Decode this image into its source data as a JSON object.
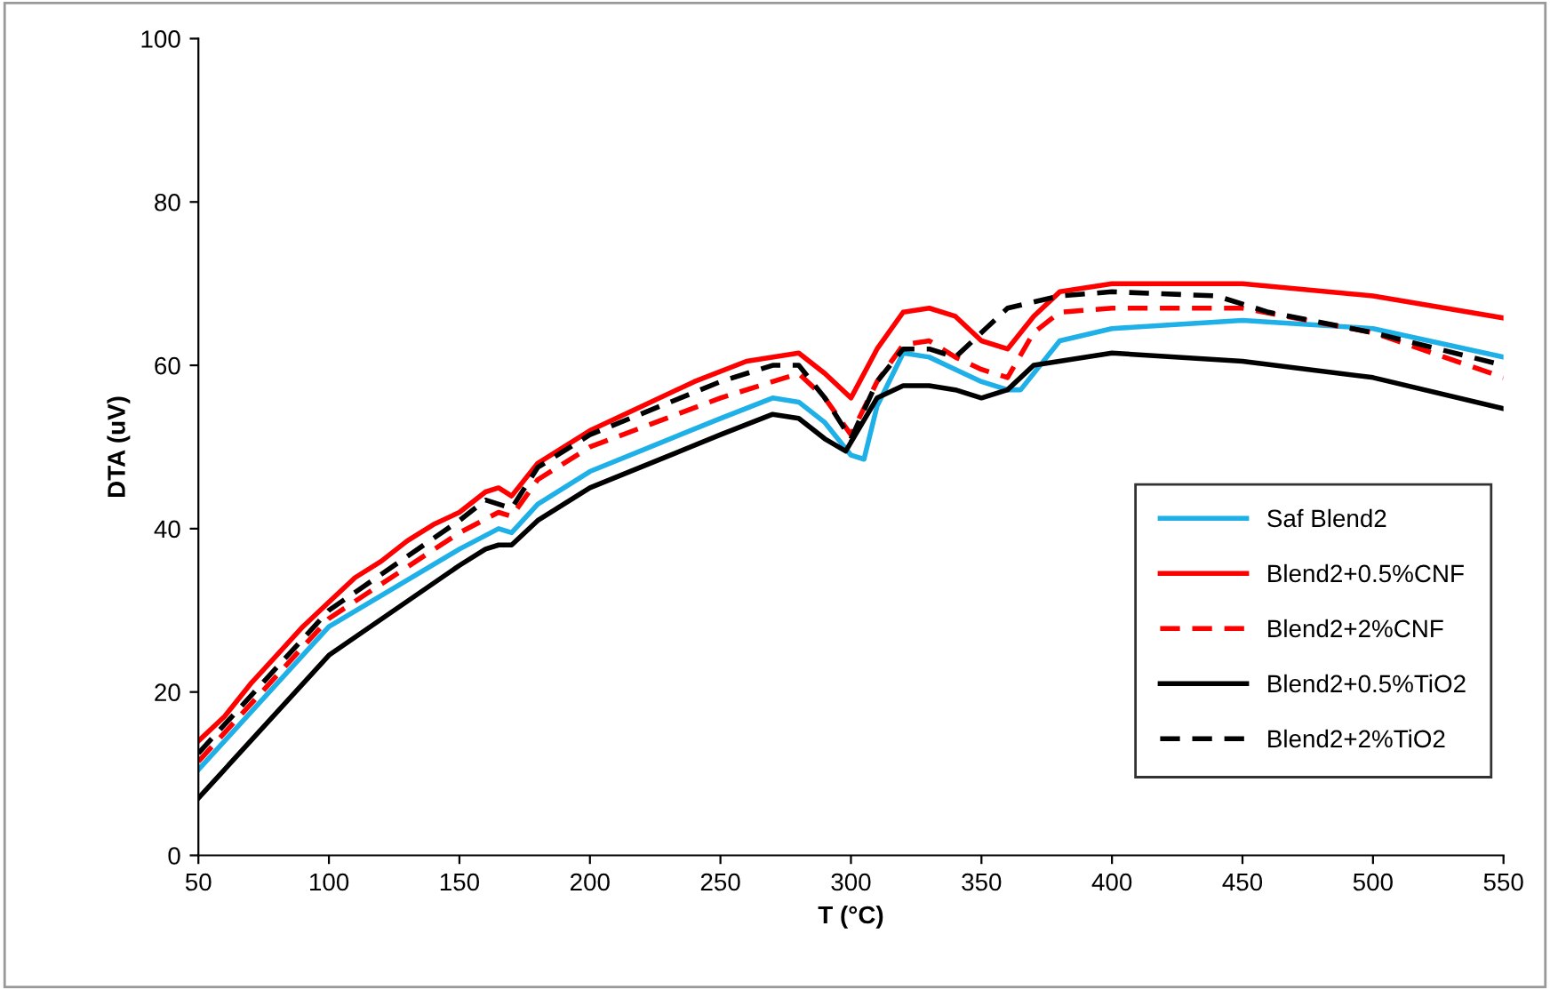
{
  "chart_data": {
    "type": "line",
    "xlabel": "T (°C)",
    "ylabel": "DTA (uV)",
    "xlim": [
      50,
      550
    ],
    "ylim": [
      0,
      100
    ],
    "xticks": [
      50,
      100,
      150,
      200,
      250,
      300,
      350,
      400,
      450,
      500,
      550
    ],
    "yticks": [
      0,
      20,
      40,
      60,
      80,
      100
    ],
    "grid": false,
    "legend": "right",
    "series": [
      {
        "name": "Saf Blend2",
        "color": "#1fb0e8",
        "line_style": "solid",
        "x": [
          50,
          100,
          150,
          165,
          170,
          180,
          200,
          250,
          270,
          280,
          290,
          300,
          305,
          310,
          320,
          330,
          340,
          350,
          360,
          365,
          380,
          400,
          450,
          500,
          550
        ],
        "values": [
          10.5,
          28,
          37.5,
          40,
          39.5,
          43,
          47,
          53.5,
          56,
          55.5,
          53,
          49,
          48.5,
          55,
          61.5,
          61,
          59.5,
          58,
          57,
          57,
          63,
          64.5,
          65.5,
          64.5,
          61
        ]
      },
      {
        "name": "Blend2+0.5%CNF",
        "color": "#ff0000",
        "line_style": "solid",
        "x": [
          50,
          60,
          70,
          80,
          90,
          100,
          110,
          120,
          130,
          140,
          150,
          160,
          165,
          170,
          180,
          200,
          220,
          240,
          260,
          280,
          290,
          300,
          310,
          320,
          330,
          340,
          350,
          360,
          370,
          380,
          400,
          450,
          500,
          550
        ],
        "values": [
          14,
          17,
          21,
          24.5,
          28,
          31,
          34,
          36,
          38.5,
          40.5,
          42,
          44.5,
          45,
          44,
          48,
          52,
          55,
          58,
          60.5,
          61.5,
          59,
          56,
          62,
          66.5,
          67,
          66,
          63,
          62,
          66,
          69,
          70,
          70,
          68.5,
          65.8
        ]
      },
      {
        "name": "Blend2+2%CNF",
        "color": "#ff0000",
        "line_style": "dashed",
        "x": [
          50,
          100,
          150,
          165,
          170,
          180,
          200,
          250,
          280,
          290,
          300,
          310,
          320,
          330,
          340,
          350,
          360,
          370,
          380,
          400,
          450,
          500,
          550
        ],
        "values": [
          11.5,
          29,
          39.5,
          42,
          41.5,
          46,
          50,
          56,
          59,
          56,
          51.5,
          58,
          62.5,
          63,
          61,
          59.5,
          58.5,
          64,
          66.5,
          67,
          67,
          64,
          58.5
        ]
      },
      {
        "name": "Blend2+0.5%TiO2",
        "color": "#000000",
        "line_style": "solid",
        "x": [
          50,
          100,
          150,
          160,
          165,
          170,
          180,
          200,
          250,
          270,
          280,
          290,
          298,
          310,
          320,
          330,
          340,
          350,
          360,
          370,
          400,
          450,
          500,
          550
        ],
        "values": [
          7,
          24.5,
          35.5,
          37.5,
          38,
          38,
          41,
          45,
          51.5,
          54,
          53.5,
          51,
          49.5,
          56,
          57.5,
          57.5,
          57,
          56,
          57,
          60,
          61.5,
          60.5,
          58.5,
          54.7
        ]
      },
      {
        "name": "Blend2+2%TiO2",
        "color": "#000000",
        "line_style": "dashed",
        "x": [
          50,
          100,
          150,
          160,
          170,
          180,
          200,
          250,
          270,
          280,
          290,
          300,
          310,
          320,
          330,
          340,
          350,
          360,
          380,
          400,
          440,
          460,
          500,
          550
        ],
        "values": [
          12.5,
          30,
          41,
          43.5,
          42.5,
          47.5,
          51.5,
          58,
          60,
          60,
          56,
          51,
          58,
          62,
          62,
          61,
          64,
          67,
          68.5,
          69,
          68.5,
          66.5,
          64,
          60
        ]
      }
    ]
  }
}
